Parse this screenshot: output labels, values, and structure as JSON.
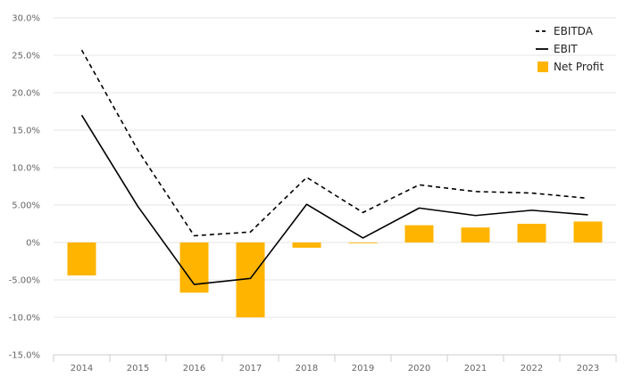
{
  "chart_data": {
    "type": "bar",
    "categories": [
      "2014",
      "2015",
      "2016",
      "2017",
      "2018",
      "2019",
      "2020",
      "2021",
      "2022",
      "2023"
    ],
    "ylim": [
      -15,
      30
    ],
    "y_ticks": [
      30,
      25,
      20,
      15,
      10,
      5,
      0,
      -5,
      -10,
      -15
    ],
    "y_tick_labels": [
      "30.0%",
      "25.0%",
      "20.0%",
      "15.0%",
      "10.0%",
      "5.00%",
      "0%",
      "-5.00%",
      "-10.0%",
      "-15.0%"
    ],
    "grid": true,
    "legend_position": "top-right",
    "series": [
      {
        "name": "EBITDA",
        "type": "line",
        "style": "dashed",
        "color": "#000000",
        "values": [
          25.7,
          12.3,
          0.9,
          1.4,
          8.7,
          4.0,
          7.7,
          6.8,
          6.6,
          5.9
        ]
      },
      {
        "name": "EBIT",
        "type": "line",
        "style": "solid",
        "color": "#000000",
        "values": [
          17.0,
          4.8,
          -5.6,
          -4.8,
          5.1,
          0.6,
          4.6,
          3.6,
          4.3,
          3.7
        ]
      },
      {
        "name": "Net Profit",
        "type": "bar",
        "color": "#FFB400",
        "values": [
          -4.4,
          0.0,
          -6.7,
          -10.0,
          -0.7,
          -0.1,
          2.3,
          2.0,
          2.5,
          2.8
        ]
      }
    ]
  }
}
